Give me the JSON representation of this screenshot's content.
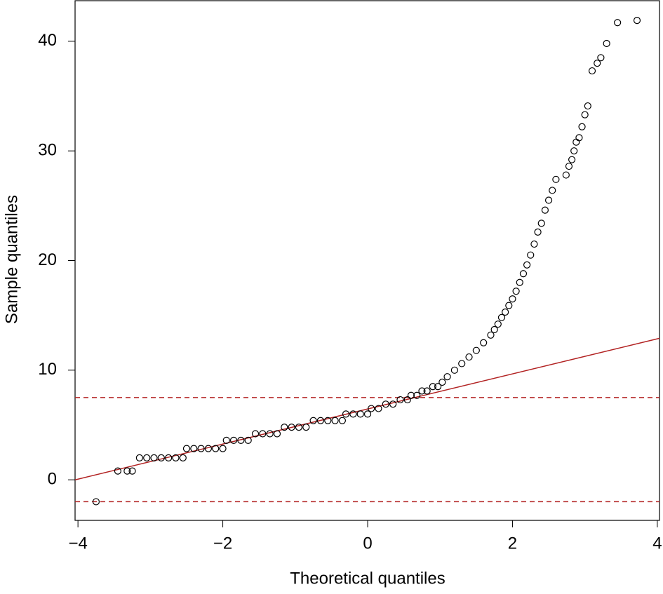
{
  "chart_data": {
    "type": "scatter",
    "x_label": "Theoretical quantiles",
    "y_label": "Sample quantiles",
    "xlim": [
      -4.04,
      4.03
    ],
    "ylim": [
      -3.7,
      43.7
    ],
    "xticks": [
      {
        "value": -4,
        "label": "−4"
      },
      {
        "value": -2,
        "label": "−2"
      },
      0,
      2,
      4
    ],
    "yticks": [
      0,
      10,
      20,
      30,
      40
    ],
    "series": [
      {
        "color": "#000000",
        "x": [
          -3.75,
          -3.45,
          -3.32,
          -3.25,
          -3.15,
          -3.05,
          -2.95,
          -2.85,
          -2.75,
          -2.65,
          -2.55,
          -2.5,
          -2.4,
          -2.3,
          -2.2,
          -2.1,
          -2.0,
          -1.95,
          -1.85,
          -1.75,
          -1.65,
          -1.55,
          -1.45,
          -1.35,
          -1.25,
          -1.15,
          -1.05,
          -0.95,
          -0.85,
          -0.75,
          -0.65,
          -0.55,
          -0.45,
          -0.35,
          -0.3,
          -0.2,
          -0.1,
          0.0,
          0.05,
          0.15,
          0.25,
          0.35,
          0.45,
          0.55,
          0.6,
          0.68,
          0.75,
          0.82,
          0.9,
          0.97,
          1.03,
          1.1,
          1.2,
          1.3,
          1.4,
          1.5,
          1.6,
          1.7,
          1.75,
          1.8,
          1.85,
          1.9,
          1.95,
          2.0,
          2.05,
          2.1,
          2.15,
          2.2,
          2.25,
          2.3,
          2.35,
          2.4,
          2.45,
          2.5,
          2.55,
          2.6,
          2.74,
          2.78,
          2.82,
          2.85,
          2.88,
          2.92,
          2.96,
          3.0,
          3.04,
          3.1,
          3.17,
          3.22,
          3.3,
          3.45,
          3.72
        ],
        "values": [
          -2.0,
          0.8,
          0.8,
          0.8,
          2.0,
          2.0,
          2.0,
          2.0,
          2.0,
          2.0,
          2.0,
          2.85,
          2.85,
          2.85,
          2.85,
          2.85,
          2.85,
          3.6,
          3.6,
          3.6,
          3.6,
          4.2,
          4.2,
          4.2,
          4.2,
          4.8,
          4.8,
          4.8,
          4.8,
          5.4,
          5.4,
          5.4,
          5.4,
          5.4,
          6.0,
          6.0,
          6.0,
          6.0,
          6.5,
          6.5,
          6.9,
          6.9,
          7.3,
          7.3,
          7.7,
          7.7,
          8.1,
          8.1,
          8.5,
          8.5,
          8.9,
          9.4,
          10.0,
          10.6,
          11.2,
          11.8,
          12.5,
          13.2,
          13.7,
          14.2,
          14.8,
          15.3,
          15.9,
          16.5,
          17.2,
          18.0,
          18.8,
          19.6,
          20.5,
          21.5,
          22.6,
          23.4,
          24.6,
          25.5,
          26.4,
          27.4,
          27.8,
          28.6,
          29.2,
          30.0,
          30.8,
          31.2,
          32.2,
          33.3,
          34.1,
          37.3,
          38.0,
          38.5,
          39.8,
          41.7,
          41.9
        ]
      }
    ],
    "reference_line": {
      "intercept": 6.46,
      "slope": 1.6,
      "color": "#b22222"
    },
    "hlines": [
      7.5,
      -2.0
    ],
    "hline_color": "#b22222"
  }
}
